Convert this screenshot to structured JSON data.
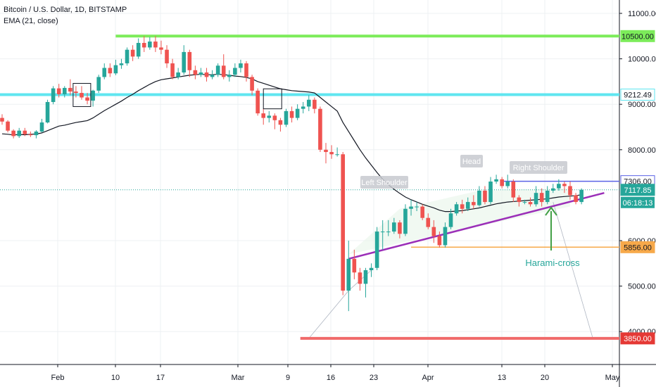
{
  "legend": {
    "title": "Bitcoin / U.S. Dollar, 1D, BITSTAMP",
    "indicator": "EMA (21, close)"
  },
  "colors": {
    "up": "#26a69a",
    "down": "#ef5350",
    "ema": "#131722",
    "resistance": "#7cec5a",
    "cyan_level": "#5fe6f0",
    "support": "#f06a6a",
    "orange_level": "#f7a94a",
    "blue_level": "#5b63e6",
    "trendline": "#9b2fb8",
    "current": "#26a69a",
    "arrow": "#43a047"
  },
  "chart_data": {
    "type": "candlestick",
    "symbol": "Bitcoin / U.S. Dollar",
    "interval": "1D",
    "exchange": "BITSTAMP",
    "x_ticks": [
      "Feb",
      "10",
      "17",
      "Mar",
      "9",
      "16",
      "23",
      "Apr",
      "13",
      "20",
      "May"
    ],
    "y_ticks": [
      "11000.00",
      "10000.00",
      "9000.00",
      "8000.00",
      "6000.00",
      "5000.00",
      "4000.00"
    ],
    "ylim": [
      3450,
      11400
    ],
    "grid": true,
    "candles": [
      [
        8700,
        8620,
        8780,
        8550
      ],
      [
        8620,
        8420,
        8650,
        8380
      ],
      [
        8420,
        8300,
        8450,
        8250
      ],
      [
        8300,
        8420,
        8480,
        8260
      ],
      [
        8420,
        8340,
        8480,
        8300
      ],
      [
        8340,
        8320,
        8400,
        8280
      ],
      [
        8320,
        8400,
        8430,
        8250
      ],
      [
        8400,
        8600,
        8680,
        8380
      ],
      [
        8600,
        9050,
        9100,
        8580
      ],
      [
        9050,
        9350,
        9400,
        9000
      ],
      [
        9350,
        9220,
        9450,
        9150
      ],
      [
        9220,
        9360,
        9400,
        9150
      ],
      [
        9360,
        9280,
        9550,
        9200
      ],
      [
        9280,
        9250,
        9400,
        9150
      ],
      [
        9250,
        9150,
        9400,
        9100
      ],
      [
        9150,
        9080,
        9250,
        9000
      ],
      [
        9080,
        9300,
        9320,
        8950
      ],
      [
        9300,
        9600,
        9650,
        9250
      ],
      [
        9600,
        9800,
        9900,
        9550
      ],
      [
        9800,
        9680,
        9900,
        9600
      ],
      [
        9680,
        9860,
        9980,
        9640
      ],
      [
        9860,
        9900,
        10000,
        9780
      ],
      [
        9900,
        10200,
        10250,
        9850
      ],
      [
        10200,
        10050,
        10300,
        9950
      ],
      [
        10050,
        10350,
        10450,
        10000
      ],
      [
        10350,
        10250,
        10500,
        10150
      ],
      [
        10250,
        10380,
        10480,
        10200
      ],
      [
        10380,
        10250,
        10500,
        10150
      ],
      [
        10250,
        10200,
        10400,
        10100
      ],
      [
        10200,
        9900,
        10300,
        9800
      ],
      [
        9900,
        9600,
        10000,
        9550
      ],
      [
        9600,
        9700,
        9800,
        9550
      ],
      [
        9700,
        10150,
        10300,
        9650
      ],
      [
        10150,
        9750,
        10200,
        9600
      ],
      [
        9750,
        9650,
        9850,
        9550
      ],
      [
        9650,
        9700,
        9800,
        9600
      ],
      [
        9700,
        9600,
        9800,
        9500
      ],
      [
        9600,
        9650,
        9750,
        9550
      ],
      [
        9650,
        9850,
        9900,
        9600
      ],
      [
        9850,
        9600,
        10100,
        9550
      ],
      [
        9600,
        9650,
        9750,
        9500
      ],
      [
        9650,
        9800,
        9900,
        9600
      ],
      [
        9800,
        9900,
        9980,
        9700
      ],
      [
        9900,
        9600,
        9950,
        9500
      ],
      [
        9600,
        9300,
        9650,
        9200
      ],
      [
        9300,
        8800,
        9350,
        8750
      ],
      [
        8800,
        8700,
        8900,
        8550
      ],
      [
        8700,
        8750,
        8850,
        8600
      ],
      [
        8750,
        8650,
        8800,
        8450
      ],
      [
        8650,
        8550,
        8700,
        8400
      ],
      [
        8550,
        8850,
        8900,
        8500
      ],
      [
        8850,
        8700,
        8950,
        8600
      ],
      [
        8700,
        8900,
        9000,
        8650
      ],
      [
        8900,
        8950,
        9050,
        8800
      ],
      [
        8950,
        9100,
        9200,
        8850
      ],
      [
        9100,
        8900,
        9150,
        8800
      ],
      [
        8900,
        8000,
        8950,
        7950
      ],
      [
        8000,
        7950,
        8150,
        7700
      ],
      [
        7950,
        7900,
        8100,
        7800
      ],
      [
        7900,
        7900,
        8050,
        7850
      ],
      [
        7900,
        4900,
        7950,
        4800
      ],
      [
        4900,
        5600,
        6000,
        4450
      ],
      [
        5600,
        5300,
        5800,
        5150
      ],
      [
        5300,
        5050,
        5400,
        4900
      ],
      [
        5050,
        5350,
        5400,
        4750
      ],
      [
        5350,
        5400,
        5500,
        5200
      ],
      [
        5400,
        6200,
        6300,
        5350
      ],
      [
        6200,
        6200,
        6450,
        5800
      ],
      [
        6200,
        6200,
        6450,
        6100
      ],
      [
        6200,
        6400,
        6500,
        6150
      ],
      [
        6400,
        6150,
        6450,
        6050
      ],
      [
        6150,
        6700,
        6800,
        6100
      ],
      [
        6700,
        6750,
        6900,
        6550
      ],
      [
        6750,
        6750,
        6850,
        6650
      ],
      [
        6750,
        6500,
        6800,
        6450
      ],
      [
        6500,
        6300,
        6600,
        6250
      ],
      [
        6300,
        6100,
        6450,
        5950
      ],
      [
        6100,
        5900,
        6200,
        5850
      ],
      [
        5900,
        6300,
        6400,
        5850
      ],
      [
        6300,
        6600,
        6700,
        6250
      ],
      [
        6600,
        6800,
        6850,
        6550
      ],
      [
        6800,
        6700,
        6900,
        6600
      ],
      [
        6700,
        6850,
        6950,
        6650
      ],
      [
        6850,
        6780,
        7000,
        6700
      ],
      [
        6780,
        7100,
        7200,
        6750
      ],
      [
        7100,
        6850,
        7200,
        6800
      ],
      [
        6850,
        7300,
        7400,
        6800
      ],
      [
        7300,
        7350,
        7450,
        7250
      ],
      [
        7350,
        7200,
        7400,
        7150
      ],
      [
        7200,
        7300,
        7450,
        7150
      ],
      [
        7300,
        6950,
        7350,
        6850
      ],
      [
        6950,
        6850,
        7000,
        6750
      ],
      [
        6850,
        6850,
        6900,
        6800
      ],
      [
        6850,
        6800,
        6950,
        6750
      ],
      [
        6800,
        7050,
        7200,
        6750
      ],
      [
        7050,
        6850,
        7150,
        6750
      ],
      [
        6850,
        7100,
        7200,
        6800
      ],
      [
        7100,
        7150,
        7250,
        7050
      ],
      [
        7150,
        7250,
        7350,
        7100
      ],
      [
        7250,
        7200,
        7300,
        7050
      ],
      [
        7200,
        7000,
        7300,
        6900
      ],
      [
        7000,
        6850,
        7050,
        6800
      ],
      [
        6850,
        7118,
        7150,
        6800
      ]
    ],
    "ema_21": [
      8350,
      8340,
      8325,
      8335,
      8330,
      8340,
      8345,
      8370,
      8420,
      8470,
      8520,
      8540,
      8570,
      8600,
      8620,
      8640,
      8700,
      8780,
      8860,
      8930,
      9000,
      9070,
      9150,
      9220,
      9300,
      9370,
      9440,
      9500,
      9540,
      9560,
      9580,
      9600,
      9620,
      9640,
      9650,
      9660,
      9650,
      9650,
      9660,
      9650,
      9640,
      9620,
      9610,
      9590,
      9560,
      9500,
      9460,
      9420,
      9380,
      9340,
      9320,
      9300,
      9290,
      9280,
      9270,
      9250,
      9150,
      9050,
      8950,
      8850,
      8600,
      8400,
      8200,
      8000,
      7820,
      7660,
      7500,
      7350,
      7230,
      7130,
      7040,
      6960,
      6900,
      6850,
      6800,
      6760,
      6720,
      6670,
      6640,
      6640,
      6650,
      6660,
      6680,
      6700,
      6720,
      6750,
      6780,
      6810,
      6830,
      6850,
      6860,
      6870,
      6880,
      6890,
      6900,
      6910,
      6920,
      6940,
      6960,
      6970,
      6980,
      6990,
      7010
    ],
    "levels": [
      {
        "label": "10500.00",
        "value": 10500
      },
      {
        "label": "9212.49",
        "value": 9212
      },
      {
        "label": "7306.00",
        "value": 7306
      },
      {
        "label": "5856.00",
        "value": 5856
      },
      {
        "label": "3850.00",
        "value": 3850
      }
    ],
    "current_price": {
      "label": "7117.85",
      "value": 7118
    },
    "countdown": "06:18:13",
    "annotations": [
      "Left Shoulder",
      "Head",
      "Right Shoulder",
      "Harami-cross"
    ]
  }
}
